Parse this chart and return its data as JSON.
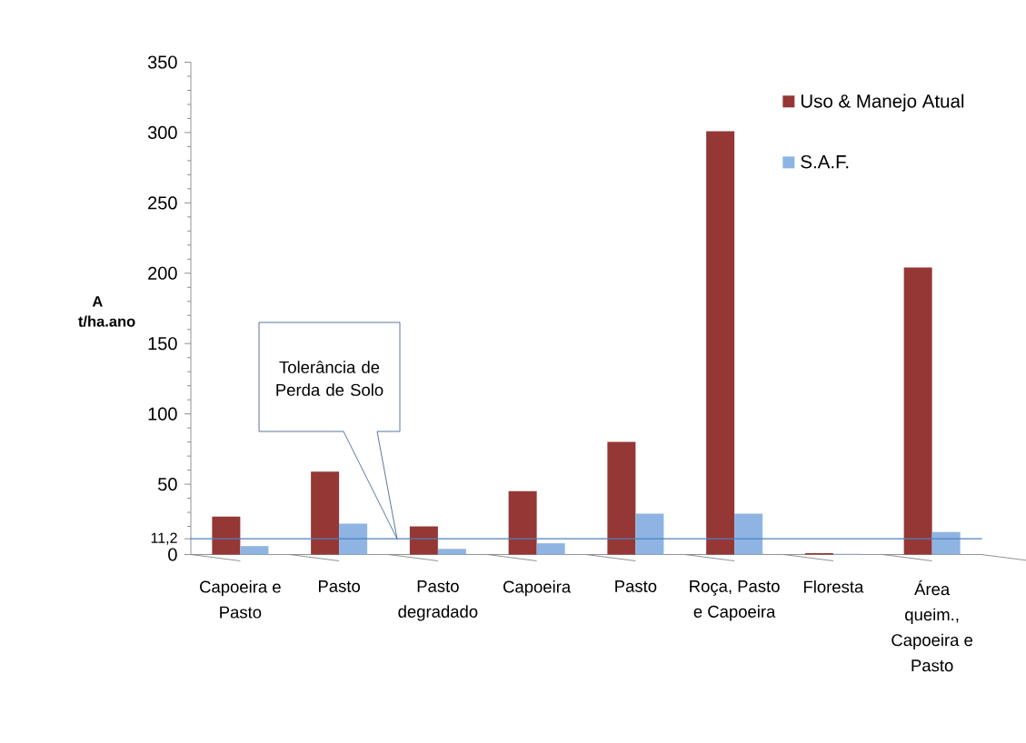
{
  "chart_data": {
    "type": "bar",
    "ylabel": "A t/ha.ano",
    "categories": [
      "Capoeira e Pasto",
      "Pasto",
      "Pasto degradado",
      "Capoeira",
      "Pasto",
      "Roça, Pasto e Capoeira",
      "Floresta",
      "Área queim., Capoeira e Pasto"
    ],
    "series": [
      {
        "name": "Uso & Manejo Atual",
        "color": "#953735",
        "values": [
          27,
          59,
          20,
          45,
          80,
          301,
          1,
          204
        ]
      },
      {
        "name": "S.A.F.",
        "color": "#8eb4e3",
        "values": [
          6,
          22,
          4,
          8,
          29,
          29,
          0.5,
          16
        ]
      }
    ],
    "ylim": [
      0,
      350
    ],
    "yticks": [
      0,
      {
        "value": 11.2,
        "label": "11,2"
      },
      {
        "value": 20,
        "label": null
      },
      {
        "value": 30,
        "label": null
      },
      {
        "value": 40,
        "label": null
      },
      50,
      {
        "value": 60,
        "label": null
      },
      {
        "value": 70,
        "label": null
      },
      {
        "value": 80,
        "label": null
      },
      {
        "value": 90,
        "label": null
      },
      100,
      {
        "value": 110,
        "label": null
      },
      {
        "value": 120,
        "label": null
      },
      {
        "value": 130,
        "label": null
      },
      {
        "value": 140,
        "label": null
      },
      150,
      {
        "value": 160,
        "label": null
      },
      {
        "value": 170,
        "label": null
      },
      {
        "value": 180,
        "label": null
      },
      {
        "value": 190,
        "label": null
      },
      200,
      {
        "value": 210,
        "label": null
      },
      {
        "value": 220,
        "label": null
      },
      {
        "value": 230,
        "label": null
      },
      {
        "value": 240,
        "label": null
      },
      250,
      {
        "value": 260,
        "label": null
      },
      {
        "value": 270,
        "label": null
      },
      {
        "value": 280,
        "label": null
      },
      {
        "value": 290,
        "label": null
      },
      300,
      {
        "value": 310,
        "label": null
      },
      {
        "value": 320,
        "label": null
      },
      {
        "value": 330,
        "label": null
      },
      {
        "value": 340,
        "label": null
      },
      350
    ],
    "ref_lines": [
      {
        "axis": "y",
        "value": 11.2,
        "color": "#4f81bd"
      }
    ],
    "annotations": [
      "Tolerância de Perda de Solo"
    ],
    "legend": "top right"
  }
}
